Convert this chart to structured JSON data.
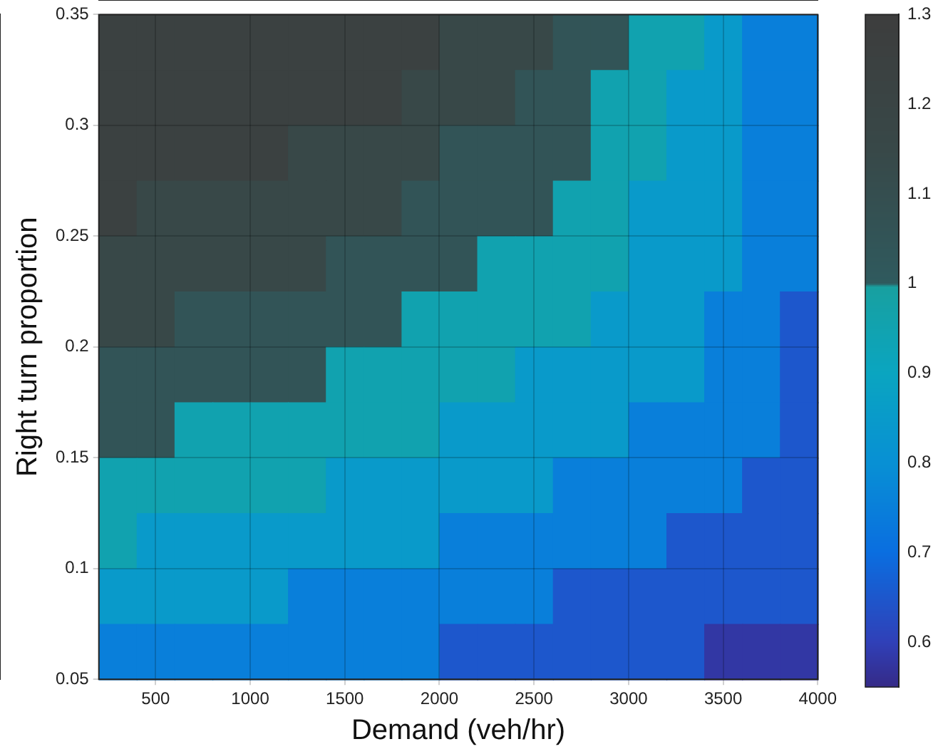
{
  "chart_data": {
    "type": "heatmap",
    "xlabel": "Demand (veh/hr)",
    "ylabel": "Right turn proportion",
    "xlim": [
      200,
      4000
    ],
    "xticks": [
      500,
      1000,
      1500,
      2000,
      2500,
      3000,
      3500,
      4000
    ],
    "ylim": [
      0.05,
      0.35
    ],
    "yticks": [
      0.05,
      0.1,
      0.15,
      0.2,
      0.25,
      0.3,
      0.35
    ],
    "clim": [
      0.55,
      1.3
    ],
    "cticks": [
      0.6,
      0.7,
      0.8,
      0.9,
      1,
      1.1,
      1.2,
      1.3
    ],
    "grid": true,
    "cells": [
      [
        1.25,
        1.25,
        1.25,
        1.25,
        1.25,
        1.25,
        1.25,
        1.25,
        1.25,
        1.15,
        1.15,
        1.15,
        1.05,
        1.05,
        0.95,
        0.95,
        0.85,
        0.75,
        0.75
      ],
      [
        1.25,
        1.25,
        1.25,
        1.25,
        1.25,
        1.25,
        1.25,
        1.25,
        1.15,
        1.15,
        1.15,
        1.05,
        1.05,
        0.95,
        0.95,
        0.85,
        0.85,
        0.75,
        0.75
      ],
      [
        1.25,
        1.25,
        1.25,
        1.25,
        1.25,
        1.15,
        1.15,
        1.15,
        1.15,
        1.05,
        1.05,
        1.05,
        1.05,
        0.95,
        0.95,
        0.85,
        0.85,
        0.75,
        0.75
      ],
      [
        1.25,
        1.15,
        1.15,
        1.15,
        1.15,
        1.15,
        1.15,
        1.15,
        1.05,
        1.05,
        1.05,
        1.05,
        0.95,
        0.95,
        0.85,
        0.85,
        0.85,
        0.75,
        0.75
      ],
      [
        1.15,
        1.15,
        1.15,
        1.15,
        1.15,
        1.15,
        1.05,
        1.05,
        1.05,
        1.05,
        0.95,
        0.95,
        0.95,
        0.95,
        0.85,
        0.85,
        0.85,
        0.75,
        0.75
      ],
      [
        1.15,
        1.15,
        1.05,
        1.05,
        1.05,
        1.05,
        1.05,
        1.05,
        0.95,
        0.95,
        0.95,
        0.95,
        0.95,
        0.85,
        0.85,
        0.85,
        0.75,
        0.75,
        0.65
      ],
      [
        1.05,
        1.05,
        1.05,
        1.05,
        1.05,
        1.05,
        0.95,
        0.95,
        0.95,
        0.95,
        0.95,
        0.85,
        0.85,
        0.85,
        0.85,
        0.85,
        0.75,
        0.75,
        0.65
      ],
      [
        1.05,
        1.05,
        0.95,
        0.95,
        0.95,
        0.95,
        0.95,
        0.95,
        0.95,
        0.85,
        0.85,
        0.85,
        0.85,
        0.85,
        0.75,
        0.75,
        0.75,
        0.75,
        0.65
      ],
      [
        0.95,
        0.95,
        0.95,
        0.95,
        0.95,
        0.95,
        0.85,
        0.85,
        0.85,
        0.85,
        0.85,
        0.85,
        0.75,
        0.75,
        0.75,
        0.75,
        0.75,
        0.65,
        0.65
      ],
      [
        0.95,
        0.85,
        0.85,
        0.85,
        0.85,
        0.85,
        0.85,
        0.85,
        0.85,
        0.75,
        0.75,
        0.75,
        0.75,
        0.75,
        0.75,
        0.65,
        0.65,
        0.65,
        0.65
      ],
      [
        0.85,
        0.85,
        0.85,
        0.85,
        0.85,
        0.75,
        0.75,
        0.75,
        0.75,
        0.75,
        0.75,
        0.75,
        0.65,
        0.65,
        0.65,
        0.65,
        0.65,
        0.65,
        0.65
      ],
      [
        0.75,
        0.75,
        0.75,
        0.75,
        0.75,
        0.75,
        0.75,
        0.75,
        0.75,
        0.65,
        0.65,
        0.65,
        0.65,
        0.65,
        0.65,
        0.65,
        0.58,
        0.58,
        0.58
      ]
    ]
  }
}
